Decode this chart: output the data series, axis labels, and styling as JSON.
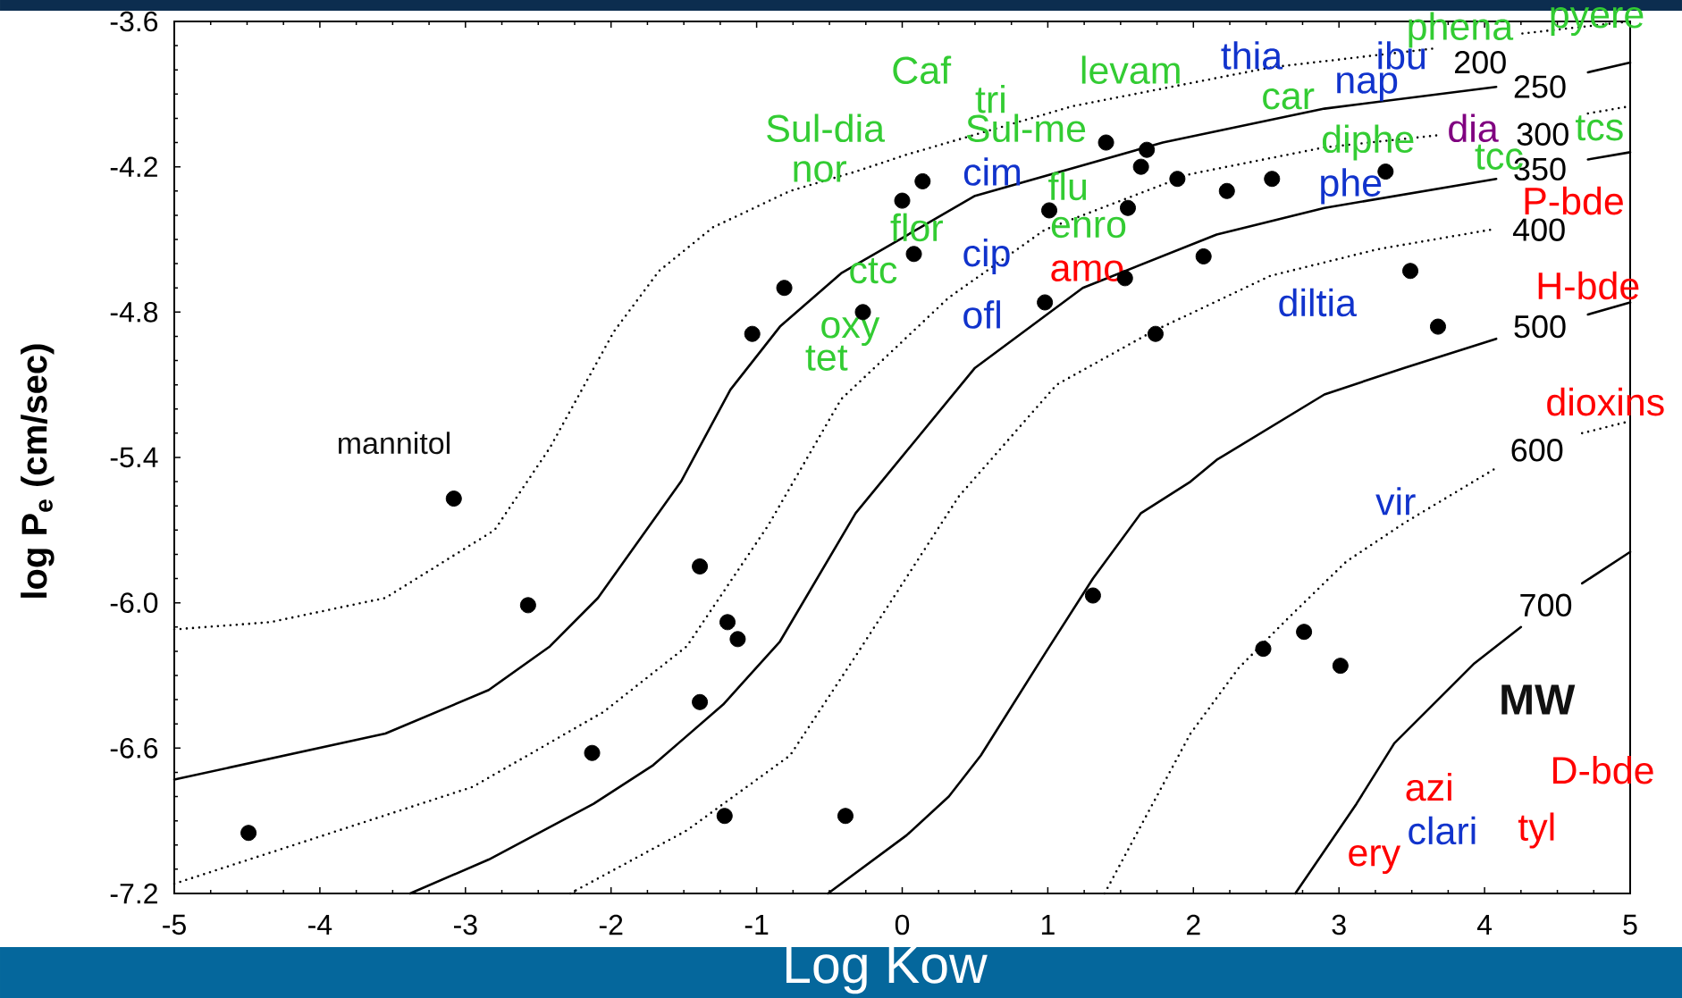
{
  "chart_data": {
    "type": "scatter",
    "xlabel": "Log Kow",
    "ylabel": "log P$_{e}$ (cm/sec)",
    "xlim": [
      -5,
      5
    ],
    "ylim": [
      -7.2,
      -3.6
    ],
    "xticks": [
      -5,
      -4,
      -3,
      -2,
      -1,
      0,
      1,
      2,
      3,
      4,
      5
    ],
    "yticks": [
      -7.2,
      -6.6,
      {
        "value": -6,
        "label": "-6.0"
      },
      -5.4,
      -4.8,
      -4.2,
      -3.6
    ],
    "legend": "right",
    "series": [
      {
        "name": "200",
        "type": "line",
        "color": "#000000",
        "marker": "none",
        "line_style": "dotted",
        "x": [
          -5,
          -4.34,
          -3.55,
          -2.8,
          -2.42,
          -1.98,
          -1.67,
          -1.3,
          -0.77,
          -0.32,
          0.03,
          1.17,
          2.53,
          3.68,
          3.97,
          4.26,
          5.0
        ],
        "values": [
          -6.11,
          -6.08,
          -5.98,
          -5.7,
          -5.36,
          -4.88,
          -4.63,
          -4.45,
          -4.3,
          -4.22,
          -4.15,
          -3.95,
          -3.79,
          -3.71,
          null,
          -3.65,
          -3.6
        ]
      },
      {
        "name": "250",
        "type": "line",
        "color": "#000000",
        "marker": "none",
        "line_style": "solid",
        "x": [
          -5,
          -3.55,
          -2.84,
          -2.42,
          -2.09,
          -1.52,
          -1.18,
          -0.84,
          -0.42,
          0.5,
          1.79,
          2.9,
          4.08,
          4.38,
          4.71,
          5.0
        ],
        "values": [
          -6.73,
          -6.54,
          -6.36,
          -6.18,
          -5.98,
          -5.5,
          -5.12,
          -4.86,
          -4.64,
          -4.32,
          -4.1,
          -3.96,
          -3.87,
          null,
          -3.81,
          -3.77
        ]
      },
      {
        "name": "300",
        "type": "line",
        "color": "#000000",
        "marker": "none",
        "line_style": "dotted",
        "x": [
          -5,
          -4.23,
          -2.95,
          -2.05,
          -1.48,
          -0.92,
          -0.42,
          0.32,
          0.98,
          1.98,
          2.9,
          3.68,
          4.4,
          4.71,
          5.0
        ],
        "values": [
          -7.16,
          -7.01,
          -6.76,
          -6.45,
          -6.18,
          -5.68,
          -5.16,
          -4.74,
          -4.46,
          -4.23,
          -4.12,
          -4.07,
          null,
          -3.98,
          -3.95
        ]
      },
      {
        "name": "350",
        "type": "line",
        "color": "#000000",
        "marker": "none",
        "line_style": "solid",
        "x": [
          -3.38,
          -2.84,
          -2.12,
          -1.71,
          -1.23,
          -0.84,
          -0.32,
          0.5,
          1.24,
          2.16,
          2.9,
          4.08,
          4.38,
          4.71,
          5.0
        ],
        "values": [
          -7.2,
          -7.06,
          -6.83,
          -6.67,
          -6.42,
          -6.16,
          -5.63,
          -5.03,
          -4.7,
          -4.48,
          -4.37,
          -4.25,
          null,
          -4.17,
          -4.14
        ]
      },
      {
        "name": "400",
        "type": "line",
        "color": "#000000",
        "marker": "none",
        "line_style": "dotted",
        "x": [
          -2.28,
          -1.48,
          -0.77,
          -0.32,
          0.39,
          1.06,
          1.72,
          2.53,
          3.27,
          4.04
        ],
        "values": [
          -7.2,
          -6.94,
          -6.63,
          -6.22,
          -5.56,
          -5.1,
          -4.88,
          -4.65,
          -4.54,
          -4.46
        ]
      },
      {
        "name": "500",
        "type": "line",
        "color": "#000000",
        "marker": "none",
        "line_style": "solid",
        "x": [
          -0.51,
          0.03,
          0.32,
          0.54,
          0.98,
          1.31,
          1.64,
          1.98,
          2.16,
          2.9,
          3.45,
          4.08,
          4.38,
          4.71,
          5.0
        ],
        "values": [
          -7.2,
          -6.96,
          -6.8,
          -6.63,
          -6.21,
          -5.9,
          -5.63,
          -5.5,
          -5.41,
          -5.14,
          -5.03,
          -4.91,
          null,
          -4.81,
          -4.76
        ]
      },
      {
        "name": "600",
        "type": "line",
        "color": "#000000",
        "marker": "none",
        "line_style": "dotted",
        "x": [
          1.39,
          1.64,
          1.98,
          2.31,
          2.64,
          3.05,
          3.45,
          4.09,
          4.36,
          4.67,
          5.0
        ],
        "values": [
          -7.2,
          -6.92,
          -6.54,
          -6.27,
          -6.07,
          -5.83,
          -5.67,
          -5.44,
          null,
          -5.3,
          -5.25
        ]
      },
      {
        "name": "700",
        "type": "line",
        "color": "#000000",
        "marker": "none",
        "line_style": "solid",
        "x": [
          2.7,
          3.12,
          3.38,
          3.93,
          4.25,
          4.42,
          4.67,
          5.0
        ],
        "values": [
          -7.2,
          -6.83,
          -6.58,
          -6.25,
          -6.1,
          null,
          -5.92,
          -5.79
        ]
      },
      {
        "color": "#000000",
        "marker": "circle",
        "x": [
          -4.49,
          -3.08,
          -2.57,
          -2.13,
          -1.39,
          -1.39,
          -1.2,
          -1.13,
          -1.22,
          -1.03,
          -0.81,
          -0.39,
          -0.27,
          0.0,
          0.14,
          0.08,
          1.01,
          0.98,
          1.4,
          1.68,
          1.64,
          1.55,
          1.53,
          1.89,
          2.23,
          2.54,
          2.07,
          1.74,
          3.32,
          3.49,
          3.68,
          1.31,
          2.48,
          2.76,
          3.01
        ],
        "values": [
          -6.95,
          -5.57,
          -6.01,
          -6.62,
          -5.85,
          -6.41,
          -6.08,
          -6.15,
          -6.88,
          -4.89,
          -4.7,
          -6.88,
          -4.8,
          -4.34,
          -4.26,
          -4.56,
          -4.38,
          -4.76,
          -4.1,
          -4.13,
          -4.2,
          -4.37,
          -4.66,
          -4.25,
          -4.3,
          -4.25,
          -4.57,
          -4.89,
          -4.22,
          -4.63,
          -4.86,
          -5.97,
          -6.19,
          -6.12,
          -6.26
        ]
      }
    ],
    "annotations": [
      "mannitol",
      "MW",
      "phena",
      "pyere",
      "Caf",
      "tri",
      "levam",
      "Sul-dia",
      "Sul-me",
      "nor",
      "car",
      "diphe",
      "tcs",
      "tcc",
      "flu",
      "flor",
      "enro",
      "ctc",
      "oxy",
      "tet",
      "thia",
      "ibu",
      "nap",
      "cim",
      "phe",
      "cip",
      "ofl",
      "diltia",
      "vir",
      "clari",
      "dia",
      "P-bde",
      "amo",
      "H-bde",
      "dioxins",
      "D-bde",
      "azi",
      "tyl",
      "ery"
    ]
  }
}
